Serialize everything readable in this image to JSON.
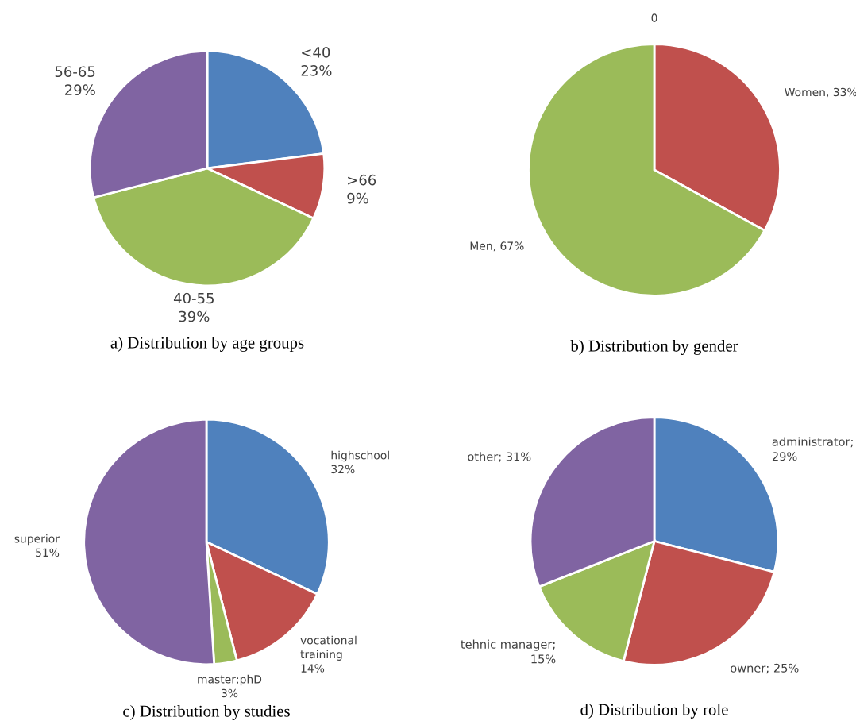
{
  "chart_data": [
    {
      "type": "pie",
      "title": "a) Distribution by age groups",
      "categories": [
        "<40\n23%",
        ">66\n9%",
        "40-55\n39%",
        "56-65\n29%"
      ],
      "values": [
        23,
        9,
        39,
        29
      ],
      "colors": [
        "#4f81bd",
        "#c0504d",
        "#9bbb59",
        "#8064a2"
      ]
    },
    {
      "type": "pie",
      "title": "b) Distribution by gender",
      "categories": [
        "0",
        "Women, 33%",
        "Men, 67%"
      ],
      "values": [
        0,
        33,
        67
      ],
      "colors": [
        "#4f81bd",
        "#c0504d",
        "#9bbb59"
      ]
    },
    {
      "type": "pie",
      "title": "c) Distribution by studies",
      "categories": [
        "highschool\n32%",
        "vocational\ntraining\n14%",
        "master;phD\n3%",
        "superior\n51%"
      ],
      "values": [
        32,
        14,
        3,
        51
      ],
      "colors": [
        "#4f81bd",
        "#c0504d",
        "#9bbb59",
        "#8064a2"
      ]
    },
    {
      "type": "pie",
      "title": "d) Distribution by role",
      "categories": [
        "administrator;\n29%",
        "owner; 25%",
        "tehnic manager;\n15%",
        "other; 31%"
      ],
      "values": [
        29,
        25,
        15,
        31
      ],
      "colors": [
        "#4f81bd",
        "#c0504d",
        "#9bbb59",
        "#8064a2"
      ]
    }
  ]
}
